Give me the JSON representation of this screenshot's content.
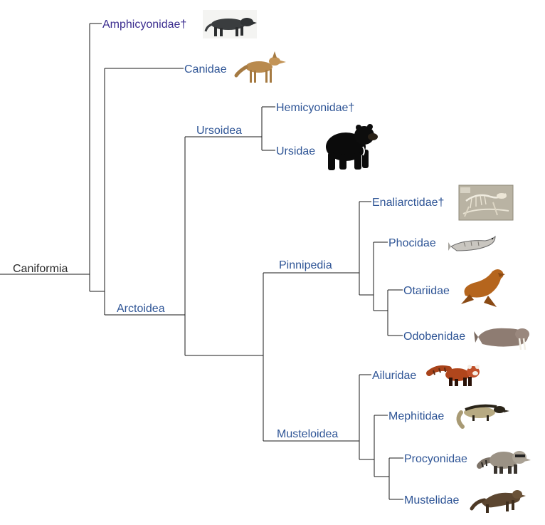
{
  "colors": {
    "root_label": "#2b2b2b",
    "amphicyonidae_label": "#3b2d8f",
    "clade_label": "#2f5596",
    "line": "#1a1a1a"
  },
  "labels": {
    "root": "Caniformia",
    "arctoidea": "Arctoidea",
    "ursoidea": "Ursoidea",
    "pinnipedia": "Pinnipedia",
    "musteloidea": "Musteloidea",
    "amphicyonidae": "Amphicyonidae†",
    "canidae": "Canidae",
    "hemicyonidae": "Hemicyonidae†",
    "ursidae": "Ursidae",
    "enaliarctidae": "Enaliarctidae†",
    "phocidae": "Phocidae",
    "otariidae": "Otariidae",
    "odobenidae": "Odobenidae",
    "ailuridae": "Ailuridae",
    "mephitidae": "Mephitidae",
    "procyonidae": "Procyonidae",
    "mustelidae": "Mustelidae"
  },
  "illustrations": {
    "amphicyonidae": "bear-dog-illustration",
    "canidae": "coyote-illustration",
    "ursidae": "black-bear-illustration",
    "enaliarctidae": "fossil-skeleton-photo",
    "phocidae": "seal-illustration",
    "otariidae": "sea-lion-illustration",
    "odobenidae": "walrus-illustration",
    "ailuridae": "red-panda-illustration",
    "mephitidae": "skunk-illustration",
    "procyonidae": "raccoon-illustration",
    "mustelidae": "ferret-illustration"
  }
}
